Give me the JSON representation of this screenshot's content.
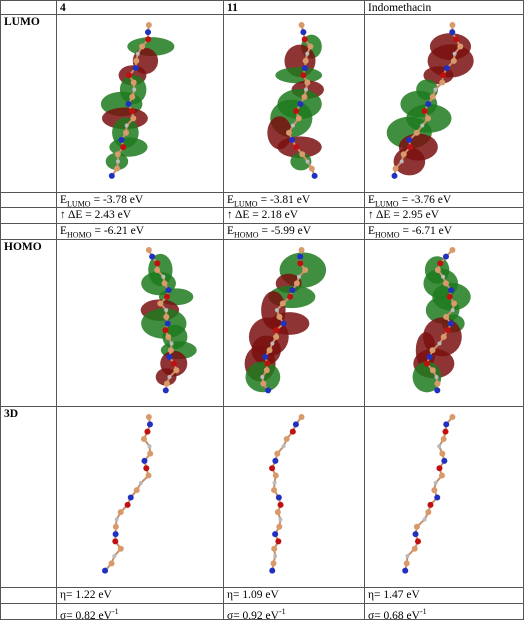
{
  "header": {
    "columns": [
      "4",
      "11",
      "Indomethacin"
    ]
  },
  "rows": {
    "lumo_label": "LUMO",
    "homo_label": "HOMO",
    "three_d_label": "3D"
  },
  "energies": {
    "lumo": [
      {
        "symbol": "E",
        "sub": "LUMO",
        "text": "= -3.78 eV"
      },
      {
        "symbol": "E",
        "sub": "LUMO",
        "text": "= -3.81 eV"
      },
      {
        "symbol": "E",
        "sub": "LUMO",
        "text": "= -3.76 eV"
      }
    ],
    "gap": [
      "↑ ΔE = 2.43 eV",
      "↑ ΔE = 2.18 eV",
      "↑ ΔE = 2.95 eV"
    ],
    "homo": [
      {
        "symbol": "E",
        "sub": "HOMO",
        "text": "= -6.21 eV"
      },
      {
        "symbol": "E",
        "sub": "HOMO",
        "text": "= -5.99 eV"
      },
      {
        "symbol": "E",
        "sub": "HOMO",
        "text": "= -6.71 eV"
      }
    ]
  },
  "descriptors": {
    "eta": [
      "η= 1.22 eV",
      "η= 1.09 eV",
      "η= 1.47 eV"
    ],
    "sigma": [
      {
        "text": "σ= 0.82 eV",
        "sup": "-1"
      },
      {
        "text": "σ= 0.92 eV",
        "sup": "-1"
      },
      {
        "text": "σ= 0.68 eV",
        "sup": "-1"
      }
    ]
  }
}
